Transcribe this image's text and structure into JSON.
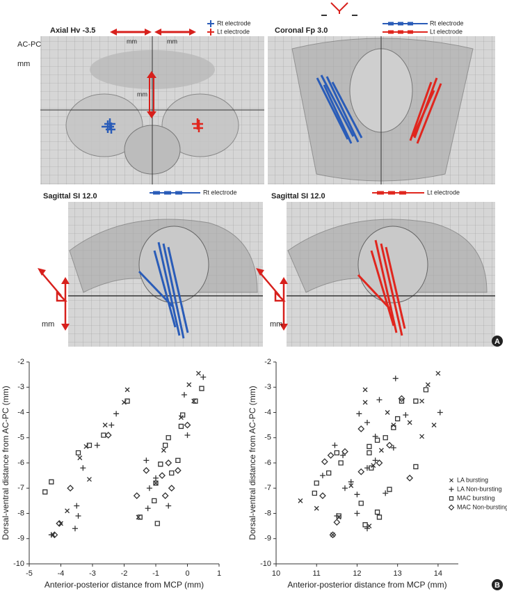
{
  "panel_a": {
    "axial_title": "Axial Hv -3.5",
    "coronal_title": "Coronal Fp 3.0",
    "sagittal_left_title": "Sagittal SI 12.0",
    "sagittal_right_title": "Sagittal SI 12.0",
    "rt_electrode": "Rt electrode",
    "lt_electrode": "Lt electrode",
    "acpc": "AC-PC",
    "mm": "mm",
    "panel_label": "A"
  },
  "panel_b": {
    "panel_label": "B"
  },
  "chart_data": [
    {
      "type": "scatter",
      "x_label": "Anterior-posterior distance from MCP (mm)",
      "y_label": "Dorsal-ventral distance from AC-PC (mm)",
      "xlim": [
        -5,
        1
      ],
      "xticks": [
        -5,
        -4,
        -3,
        -2,
        -1,
        0,
        1
      ],
      "ylim": [
        -10,
        -2
      ],
      "yticks": [
        -10,
        -9,
        -8,
        -7,
        -6,
        -5,
        -4,
        -3,
        -2
      ],
      "series": [
        {
          "marker": "x",
          "color": "#333333",
          "x": [
            -1.9,
            -2.0,
            0.35,
            0.05,
            -2.6,
            -3.2,
            -3.4,
            -3.8,
            -4.25,
            -0.2,
            -1.0,
            -0.75,
            -3.1,
            -1.55,
            -4.0,
            0.2
          ],
          "values": [
            -3.1,
            -3.6,
            -2.45,
            -2.9,
            -4.5,
            -5.35,
            -5.8,
            -7.9,
            -8.85,
            -4.2,
            -6.8,
            -5.5,
            -6.65,
            -8.15,
            -8.4,
            -3.55
          ]
        },
        {
          "marker": "plus",
          "color": "#333333",
          "x": [
            0.5,
            -2.25,
            -2.4,
            -2.85,
            -3.3,
            -3.5,
            -3.45,
            -3.55,
            -1.3,
            -1.0,
            -1.2,
            0.0,
            -0.1,
            -1.25,
            -4.3,
            -0.6
          ],
          "values": [
            -2.6,
            -4.05,
            -4.5,
            -5.3,
            -6.2,
            -7.7,
            -8.1,
            -8.6,
            -5.9,
            -6.6,
            -7.0,
            -4.9,
            -3.3,
            -7.8,
            -8.85,
            -7.7
          ]
        },
        {
          "marker": "square",
          "color": "#333333",
          "x": [
            -4.5,
            -4.3,
            -3.45,
            -3.1,
            -2.65,
            -1.9,
            0.45,
            0.25,
            -0.15,
            -0.2,
            -0.6,
            -0.7,
            -0.85,
            -1.0,
            -1.05,
            -0.95,
            -1.5,
            -0.3,
            -0.5
          ],
          "values": [
            -7.15,
            -6.75,
            -5.6,
            -5.3,
            -4.9,
            -3.55,
            -3.05,
            -3.55,
            -4.1,
            -4.55,
            -5.0,
            -5.3,
            -6.05,
            -6.8,
            -7.5,
            -8.4,
            -8.15,
            -5.9,
            -6.4
          ]
        },
        {
          "marker": "diamond",
          "color": "#333333",
          "x": [
            -4.05,
            -4.2,
            -3.7,
            -2.5,
            -1.6,
            -0.5,
            -0.3,
            -0.6,
            0.0,
            -0.7,
            -1.3,
            -0.8
          ],
          "values": [
            -8.4,
            -8.85,
            -7.0,
            -4.9,
            -7.3,
            -7.0,
            -6.3,
            -6.0,
            -4.5,
            -7.3,
            -6.3,
            -6.5
          ]
        }
      ]
    },
    {
      "type": "scatter",
      "x_label": "Anterior-posterior distance from MCP (mm)",
      "y_label": "Dorsal-ventral distance from AC-PC (mm)",
      "xlim": [
        10,
        14.5
      ],
      "xticks": [
        10,
        11,
        12,
        13,
        14
      ],
      "ylim": [
        -10,
        -2
      ],
      "yticks": [
        -10,
        -9,
        -8,
        -7,
        -6,
        -5,
        -4,
        -3,
        -2
      ],
      "legend": "right",
      "series": [
        {
          "name": "LA bursting",
          "marker": "x",
          "color": "#333333",
          "x": [
            10.6,
            12.2,
            12.2,
            14.0,
            13.75,
            13.6,
            13.9,
            13.6,
            12.9,
            13.3,
            12.6,
            11.85,
            11.55,
            11.0,
            12.3,
            11.4,
            12.4,
            12.75
          ],
          "values": [
            -7.5,
            -3.1,
            -3.6,
            -2.45,
            -2.9,
            -3.55,
            -4.5,
            -4.95,
            -4.5,
            -4.4,
            -5.5,
            -6.9,
            -8.15,
            -7.8,
            -8.5,
            -8.85,
            -6.1,
            -4.0
          ]
        },
        {
          "name": "LA Non-bursting",
          "marker": "plus",
          "color": "#333333",
          "x": [
            12.95,
            14.05,
            13.2,
            12.05,
            12.25,
            11.45,
            11.65,
            11.15,
            11.7,
            11.85,
            12.55,
            12.25,
            12.45,
            12.9,
            12.0,
            12.25,
            11.5,
            12.0,
            12.7,
            12.45
          ],
          "values": [
            -2.65,
            -4.0,
            -4.1,
            -4.05,
            -4.4,
            -5.3,
            -5.7,
            -6.5,
            -7.0,
            -6.75,
            -3.5,
            -6.2,
            -5.9,
            -5.4,
            -7.25,
            -8.6,
            -8.1,
            -8.0,
            -7.2,
            -4.95
          ]
        },
        {
          "name": "MAC bursting",
          "marker": "square",
          "color": "#333333",
          "x": [
            10.95,
            11.0,
            11.3,
            11.5,
            11.6,
            12.2,
            12.1,
            12.5,
            12.55,
            12.3,
            12.3,
            12.5,
            12.7,
            12.9,
            13.0,
            13.1,
            13.45,
            13.7,
            13.45,
            12.8,
            11.55,
            12.35
          ],
          "values": [
            -7.2,
            -6.8,
            -6.4,
            -5.6,
            -6.0,
            -8.45,
            -7.6,
            -7.95,
            -8.15,
            -5.6,
            -5.35,
            -5.1,
            -5.0,
            -4.6,
            -4.25,
            -3.55,
            -3.55,
            -3.1,
            -6.15,
            -7.05,
            -8.1,
            -6.2
          ]
        },
        {
          "name": "MAC Non-bursting",
          "marker": "diamond",
          "color": "#333333",
          "x": [
            11.35,
            11.2,
            11.15,
            11.4,
            11.5,
            12.55,
            12.8,
            13.3,
            13.1,
            12.1,
            12.1,
            11.7
          ],
          "values": [
            -5.7,
            -5.95,
            -7.3,
            -8.85,
            -8.35,
            -6.0,
            -5.3,
            -6.6,
            -3.45,
            -4.65,
            -6.35,
            -5.55
          ]
        }
      ]
    }
  ]
}
